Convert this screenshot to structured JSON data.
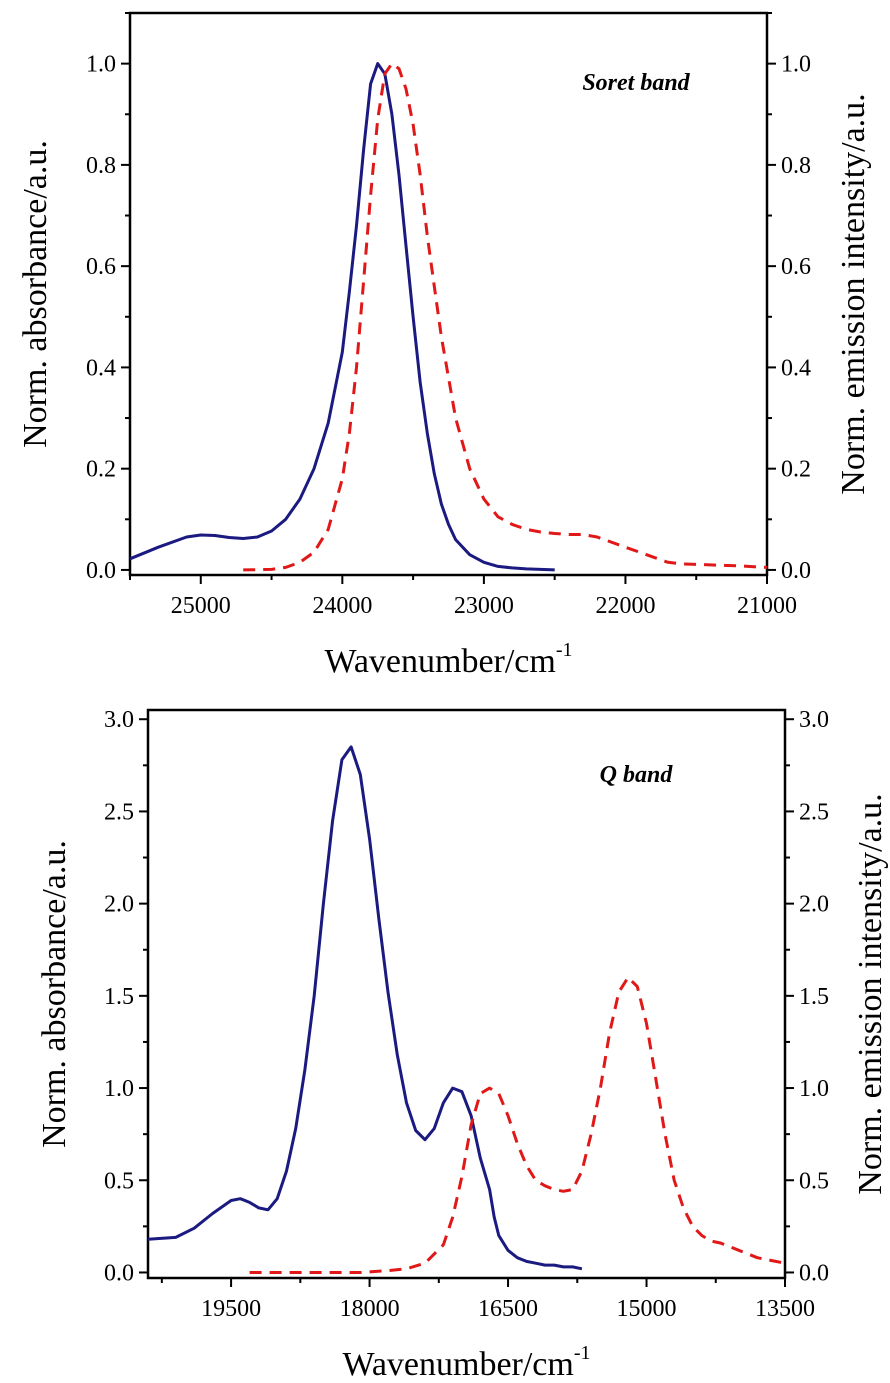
{
  "chart_data": [
    {
      "type": "line",
      "annotation": "Soret band",
      "xlabel": "Wavenumber/cm",
      "xlabel_sup": "-1",
      "ylabel_left": "Norm. absorbance/a.u.",
      "ylabel_right": "Norm. emission intensity/a.u.",
      "xlim": [
        25500,
        21000
      ],
      "ylim": [
        -0.01,
        1.1
      ],
      "x_ticks": [
        25000,
        24000,
        23000,
        22000,
        21000
      ],
      "x_tick_labels": [
        "25000",
        "24000",
        "23000",
        "22000",
        "21000"
      ],
      "y_ticks": [
        0.0,
        0.2,
        0.4,
        0.6,
        0.8,
        1.0
      ],
      "y_tick_labels": [
        "0.0",
        "0.2",
        "0.4",
        "0.6",
        "0.8",
        "1.0"
      ],
      "grid": false,
      "series": [
        {
          "color": "#1a1a80",
          "dash": "solid",
          "x": [
            25500,
            25300,
            25100,
            25000,
            24900,
            24800,
            24700,
            24600,
            24500,
            24400,
            24300,
            24200,
            24100,
            24000,
            23950,
            23900,
            23850,
            23800,
            23750,
            23700,
            23650,
            23600,
            23550,
            23500,
            23450,
            23400,
            23350,
            23300,
            23250,
            23200,
            23100,
            23000,
            22900,
            22800,
            22700,
            22600,
            22500
          ],
          "values": [
            0.022,
            0.045,
            0.065,
            0.069,
            0.068,
            0.064,
            0.062,
            0.065,
            0.077,
            0.1,
            0.14,
            0.2,
            0.29,
            0.43,
            0.55,
            0.68,
            0.83,
            0.96,
            1.0,
            0.98,
            0.9,
            0.78,
            0.64,
            0.5,
            0.37,
            0.27,
            0.19,
            0.13,
            0.09,
            0.06,
            0.03,
            0.015,
            0.007,
            0.004,
            0.002,
            0.001,
            0.0
          ]
        },
        {
          "color": "#e01818",
          "dash": "dashed",
          "x": [
            24700,
            24500,
            24400,
            24300,
            24200,
            24100,
            24000,
            23950,
            23900,
            23850,
            23800,
            23750,
            23700,
            23650,
            23600,
            23550,
            23500,
            23450,
            23400,
            23350,
            23300,
            23250,
            23200,
            23100,
            23000,
            22900,
            22800,
            22700,
            22600,
            22500,
            22400,
            22300,
            22200,
            22100,
            22000,
            21900,
            21800,
            21700,
            21600,
            21400,
            21200,
            21000
          ],
          "values": [
            0.0,
            0.001,
            0.005,
            0.015,
            0.035,
            0.08,
            0.18,
            0.27,
            0.4,
            0.57,
            0.74,
            0.89,
            0.98,
            1.0,
            0.99,
            0.95,
            0.88,
            0.78,
            0.66,
            0.56,
            0.46,
            0.38,
            0.3,
            0.2,
            0.14,
            0.105,
            0.09,
            0.08,
            0.075,
            0.072,
            0.07,
            0.07,
            0.065,
            0.055,
            0.045,
            0.035,
            0.025,
            0.015,
            0.012,
            0.01,
            0.008,
            0.005
          ]
        }
      ]
    },
    {
      "type": "line",
      "annotation": "Q band",
      "xlabel": "Wavenumber/cm",
      "xlabel_sup": "-1",
      "ylabel_left": "Norm. absorbance/a.u.",
      "ylabel_right": "Norm. emission intensity/a.u.",
      "xlim": [
        20400,
        13500
      ],
      "ylim": [
        -0.03,
        3.05
      ],
      "x_ticks": [
        19500,
        18000,
        16500,
        15000,
        13500
      ],
      "x_tick_labels": [
        "19500",
        "18000",
        "16500",
        "15000",
        "13500"
      ],
      "y_ticks": [
        0.0,
        0.5,
        1.0,
        1.5,
        2.0,
        2.5,
        3.0
      ],
      "y_tick_labels": [
        "0.0",
        "0.5",
        "1.0",
        "1.5",
        "2.0",
        "2.5",
        "3.0"
      ],
      "grid": false,
      "series": [
        {
          "color": "#1a1a80",
          "dash": "solid",
          "x": [
            20400,
            20100,
            19900,
            19700,
            19500,
            19400,
            19300,
            19200,
            19100,
            19000,
            18900,
            18800,
            18700,
            18600,
            18500,
            18400,
            18300,
            18200,
            18100,
            18000,
            17900,
            17800,
            17700,
            17600,
            17500,
            17400,
            17300,
            17200,
            17100,
            17000,
            16900,
            16800,
            16700,
            16650,
            16600,
            16500,
            16400,
            16300,
            16200,
            16100,
            16000,
            15900,
            15800,
            15700
          ],
          "values": [
            0.18,
            0.19,
            0.24,
            0.32,
            0.39,
            0.4,
            0.38,
            0.35,
            0.34,
            0.4,
            0.55,
            0.78,
            1.1,
            1.5,
            2.0,
            2.45,
            2.78,
            2.85,
            2.7,
            2.35,
            1.92,
            1.52,
            1.18,
            0.92,
            0.77,
            0.72,
            0.78,
            0.92,
            1.0,
            0.98,
            0.85,
            0.62,
            0.45,
            0.3,
            0.2,
            0.12,
            0.08,
            0.06,
            0.05,
            0.04,
            0.04,
            0.03,
            0.03,
            0.02
          ]
        },
        {
          "color": "#e01818",
          "dash": "dashed",
          "x": [
            19300,
            19000,
            18700,
            18400,
            18100,
            17800,
            17600,
            17400,
            17200,
            17100,
            17000,
            16900,
            16800,
            16700,
            16600,
            16500,
            16400,
            16300,
            16200,
            16100,
            16000,
            15900,
            15800,
            15700,
            15600,
            15500,
            15400,
            15300,
            15200,
            15100,
            15000,
            14900,
            14800,
            14700,
            14600,
            14500,
            14400,
            14300,
            14200,
            14100,
            14000,
            13900,
            13800,
            13700,
            13600,
            13500
          ],
          "values": [
            0.0,
            0.0,
            0.0,
            0.0,
            0.0,
            0.01,
            0.02,
            0.05,
            0.15,
            0.3,
            0.52,
            0.8,
            0.97,
            1.0,
            0.97,
            0.85,
            0.7,
            0.58,
            0.5,
            0.47,
            0.45,
            0.44,
            0.45,
            0.55,
            0.75,
            1.0,
            1.3,
            1.52,
            1.6,
            1.55,
            1.35,
            1.05,
            0.75,
            0.5,
            0.35,
            0.25,
            0.2,
            0.17,
            0.16,
            0.14,
            0.12,
            0.1,
            0.08,
            0.07,
            0.06,
            0.05
          ]
        }
      ]
    }
  ]
}
